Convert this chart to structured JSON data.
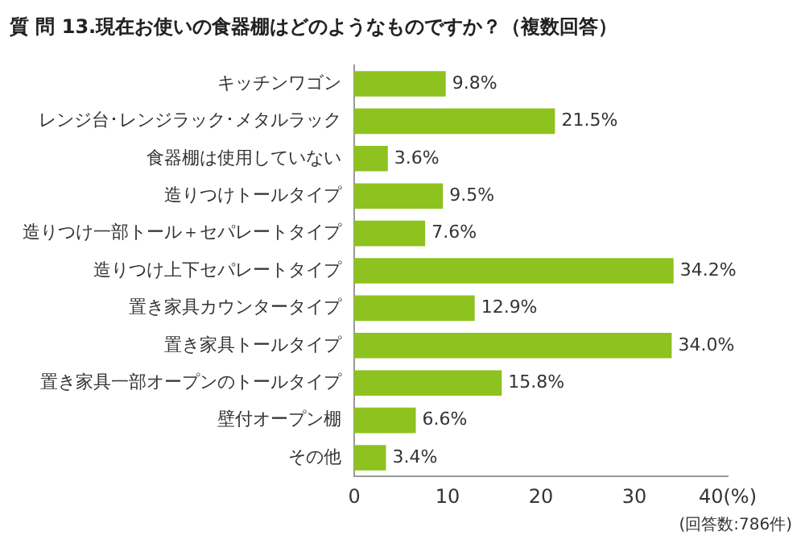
{
  "chart_data": {
    "type": "bar",
    "orientation": "horizontal",
    "title": "質 問 13.現在お使いの食器棚はどのようなものですか？（複数回答）",
    "categories": [
      "キッチンワゴン",
      "レンジ台･レンジラック･メタルラック",
      "食器棚は使用していない",
      "造りつけトールタイプ",
      "造りつけ一部トール＋セパレートタイプ",
      "造りつけ上下セパレートタイプ",
      "置き家具カウンタータイプ",
      "置き家具トールタイプ",
      "置き家具一部オープンのトールタイプ",
      "壁付オープン棚",
      "その他"
    ],
    "values": [
      9.8,
      21.5,
      3.6,
      9.5,
      7.6,
      34.2,
      12.9,
      34.0,
      15.8,
      6.6,
      3.4
    ],
    "value_labels": [
      "9.8%",
      "21.5%",
      "3.6%",
      "9.5%",
      "7.6%",
      "34.2%",
      "12.9%",
      "34.0%",
      "15.8%",
      "6.6%",
      "3.4%"
    ],
    "color": "#8dc21f",
    "xlim": [
      0,
      40
    ],
    "xticks": [
      0,
      10,
      20,
      30,
      {
        "value": 40,
        "label": "40(%)"
      }
    ],
    "annotations": [
      "(回答数:786件)"
    ],
    "legend": false
  }
}
